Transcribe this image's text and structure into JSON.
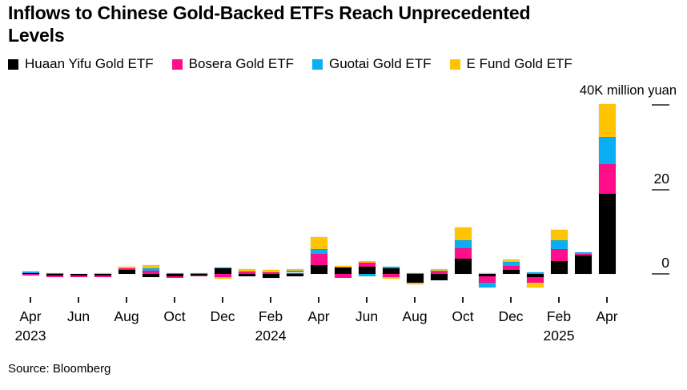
{
  "title": {
    "line1": "Inflows to Chinese Gold-Backed ETFs Reach Unprecedented",
    "line2": "Levels",
    "full": "Inflows to Chinese Gold-Backed ETFs Reach Unprecedented Levels"
  },
  "source": "Source: Bloomberg",
  "axis": {
    "y_unit_label": "40K million yuan",
    "right_ticks": [
      {
        "value": 40,
        "label": ""
      },
      {
        "value": 20,
        "label": "20"
      },
      {
        "value": 0,
        "label": "0"
      }
    ]
  },
  "legend": [
    {
      "label": "Huaan Yifu Gold ETF",
      "color": "#000000"
    },
    {
      "label": "Bosera Gold ETF",
      "color": "#FF0D8A"
    },
    {
      "label": "Guotai Gold ETF",
      "color": "#0BAEF5"
    },
    {
      "label": "E Fund Gold ETF",
      "color": "#FFC502"
    }
  ],
  "chart_data": {
    "type": "bar",
    "stacked": true,
    "title": "Inflows to Chinese Gold-Backed ETFs Reach Unprecedented Levels",
    "ylabel": "K million yuan",
    "ylim": [
      -4,
      40
    ],
    "y_gridlines": [
      0,
      20,
      40
    ],
    "legend_position": "top",
    "grid": false,
    "categories": [
      "Apr 2023",
      "May 2023",
      "Jun 2023",
      "Jul 2023",
      "Aug 2023",
      "Sep 2023",
      "Oct 2023",
      "Nov 2023",
      "Dec 2023",
      "Jan 2024",
      "Feb 2024",
      "Mar 2024",
      "Apr 2024",
      "May 2024",
      "Jun 2024",
      "Jul 2024",
      "Aug 2024",
      "Sep 2024",
      "Oct 2024",
      "Nov 2024",
      "Dec 2024",
      "Jan 2025",
      "Feb 2025",
      "Mar 2025",
      "Apr 2025"
    ],
    "series": [
      {
        "name": "Huaan Yifu Gold ETF",
        "color": "#000000",
        "values": [
          0.15,
          -0.4,
          -0.45,
          -0.3,
          0.9,
          -0.8,
          -0.6,
          -0.3,
          1.25,
          -0.6,
          -0.9,
          -0.5,
          2.0,
          1.6,
          1.7,
          1.3,
          -2.1,
          -1.5,
          3.6,
          -0.5,
          0.95,
          -0.8,
          3.1,
          4.3,
          19.0
        ]
      },
      {
        "name": "Bosera Gold ETF",
        "color": "#FF0D8A",
        "values": [
          -0.45,
          -0.2,
          -0.1,
          -0.45,
          0.4,
          0.7,
          -0.15,
          -0.15,
          -0.7,
          0.6,
          0.4,
          0.2,
          2.7,
          -0.9,
          0.95,
          -0.8,
          0,
          0.5,
          2.5,
          -1.6,
          0.95,
          -1.2,
          2.7,
          0.4,
          6.9
        ]
      },
      {
        "name": "Guotai Gold ETF",
        "color": "#0BAEF5",
        "values": [
          0.1,
          0.15,
          0,
          0,
          0,
          0.7,
          0.15,
          0.1,
          0.3,
          0,
          0,
          0.4,
          1.1,
          0,
          -0.5,
          0.35,
          0.2,
          0.1,
          1.9,
          -1.1,
          1.0,
          0.3,
          2.2,
          0.45,
          6.5
        ]
      },
      {
        "name": "E Fund Gold ETF",
        "color": "#FFC502",
        "values": [
          0,
          0,
          0,
          0.1,
          0.35,
          0.6,
          0,
          0,
          -0.5,
          0.6,
          0.5,
          0.45,
          3.0,
          0.35,
          0.35,
          -0.4,
          -0.45,
          0.4,
          3.0,
          0.2,
          0.5,
          -1.2,
          2.5,
          0,
          7.7
        ]
      }
    ],
    "x_ticks": [
      {
        "index": 0,
        "month": "Apr",
        "year": "2023"
      },
      {
        "index": 2,
        "month": "Jun",
        "year": ""
      },
      {
        "index": 4,
        "month": "Aug",
        "year": ""
      },
      {
        "index": 6,
        "month": "Oct",
        "year": ""
      },
      {
        "index": 8,
        "month": "Dec",
        "year": ""
      },
      {
        "index": 10,
        "month": "Feb",
        "year": "2024"
      },
      {
        "index": 12,
        "month": "Apr",
        "year": ""
      },
      {
        "index": 14,
        "month": "Jun",
        "year": ""
      },
      {
        "index": 16,
        "month": "Aug",
        "year": ""
      },
      {
        "index": 18,
        "month": "Oct",
        "year": ""
      },
      {
        "index": 20,
        "month": "Dec",
        "year": ""
      },
      {
        "index": 22,
        "month": "Feb",
        "year": "2025"
      },
      {
        "index": 24,
        "month": "Apr",
        "year": ""
      }
    ]
  },
  "geometry_note": "zero baseline y=342px, 5.275px per unit, first bar center x=38px, bar pitch 30px, bar width 21px"
}
